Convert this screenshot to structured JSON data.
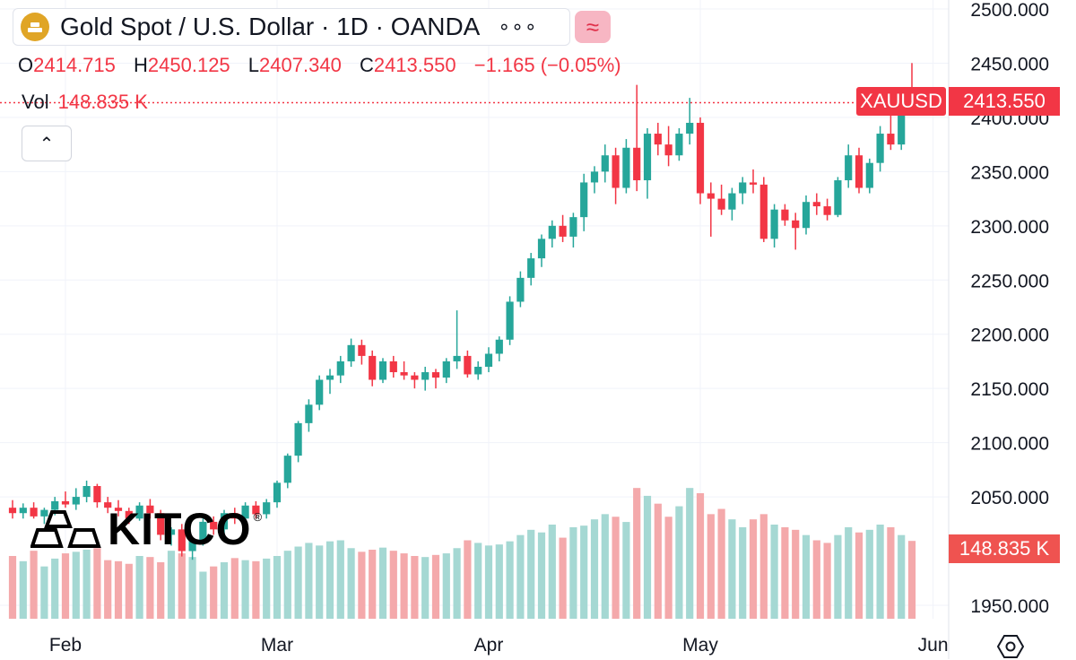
{
  "header": {
    "symbol_title": "Gold Spot / U.S. Dollar · 1D · OANDA",
    "more_label": "∘∘∘",
    "compare_label": "≈",
    "collapse_label": "⌃"
  },
  "ohlc": {
    "open_label": "O",
    "open": "2414.715",
    "high_label": "H",
    "high": "2450.125",
    "low_label": "L",
    "low": "2407.340",
    "close_label": "C",
    "close": "2413.550",
    "change": "−1.165 (−0.05%)"
  },
  "volume": {
    "label": "Vol",
    "value": "148.835 K"
  },
  "tags": {
    "ticker": "XAUUSD",
    "last_price": "2413.550",
    "last_volume": "148.835 K"
  },
  "logo": {
    "text": "KITCO",
    "mark": "®"
  },
  "colors": {
    "up": "#26a69a",
    "down": "#f23645",
    "up_volume": "#a5d8d3",
    "down_volume": "#f4a9ab",
    "grid": "#f0f3fa"
  },
  "icons": {
    "settings": "settings-hexagon-icon",
    "coin": "gold-bars-icon"
  },
  "chart_data": {
    "type": "candlestick",
    "interval": "1D",
    "price_axis_ticks": [
      "1950.000",
      "2050.000",
      "2100.000",
      "2150.000",
      "2200.000",
      "2250.000",
      "2300.000",
      "2350.000",
      "2400.000",
      "2450.000",
      "2500.000"
    ],
    "price_range": [
      1940,
      2505
    ],
    "time_axis_labels": [
      {
        "label": "Feb",
        "index": 5
      },
      {
        "label": "Mar",
        "index": 25
      },
      {
        "label": "Apr",
        "index": 45
      },
      {
        "label": "May",
        "index": 65
      },
      {
        "label": "Jun",
        "index": 87
      }
    ],
    "volume_range": [
      0,
      300
    ],
    "last_price": 2413.55,
    "candles": [
      [
        2040,
        2047,
        2030,
        2035,
        120
      ],
      [
        2035,
        2044,
        2030,
        2040,
        110
      ],
      [
        2040,
        2045,
        2030,
        2032,
        130
      ],
      [
        2032,
        2040,
        2025,
        2038,
        100
      ],
      [
        2038,
        2050,
        2033,
        2046,
        115
      ],
      [
        2046,
        2055,
        2040,
        2043,
        125
      ],
      [
        2043,
        2058,
        2038,
        2050,
        128
      ],
      [
        2050,
        2065,
        2045,
        2060,
        132
      ],
      [
        2060,
        2062,
        2040,
        2045,
        135
      ],
      [
        2045,
        2050,
        2035,
        2040,
        112
      ],
      [
        2040,
        2047,
        2032,
        2037,
        110
      ],
      [
        2037,
        2040,
        2025,
        2030,
        105
      ],
      [
        2030,
        2045,
        2028,
        2042,
        120
      ],
      [
        2042,
        2048,
        2030,
        2035,
        118
      ],
      [
        2035,
        2038,
        2010,
        2015,
        108
      ],
      [
        2015,
        2022,
        2005,
        2020,
        130
      ],
      [
        2020,
        2025,
        1995,
        2000,
        125
      ],
      [
        2000,
        2012,
        1992,
        2010,
        118
      ],
      [
        2010,
        2030,
        2005,
        2027,
        90
      ],
      [
        2027,
        2032,
        2015,
        2020,
        100
      ],
      [
        2020,
        2038,
        2015,
        2035,
        108
      ],
      [
        2035,
        2040,
        2025,
        2030,
        116
      ],
      [
        2030,
        2045,
        2028,
        2042,
        112
      ],
      [
        2042,
        2046,
        2030,
        2034,
        110
      ],
      [
        2034,
        2048,
        2030,
        2045,
        115
      ],
      [
        2045,
        2065,
        2040,
        2063,
        120
      ],
      [
        2063,
        2090,
        2058,
        2088,
        130
      ],
      [
        2088,
        2120,
        2082,
        2118,
        138
      ],
      [
        2118,
        2140,
        2110,
        2135,
        145
      ],
      [
        2135,
        2162,
        2130,
        2158,
        140
      ],
      [
        2158,
        2168,
        2145,
        2162,
        148
      ],
      [
        2162,
        2180,
        2155,
        2175,
        150
      ],
      [
        2175,
        2196,
        2170,
        2190,
        135
      ],
      [
        2190,
        2195,
        2172,
        2180,
        128
      ],
      [
        2180,
        2185,
        2152,
        2158,
        132
      ],
      [
        2158,
        2178,
        2155,
        2175,
        136
      ],
      [
        2175,
        2180,
        2160,
        2165,
        130
      ],
      [
        2165,
        2175,
        2158,
        2162,
        125
      ],
      [
        2162,
        2165,
        2150,
        2158,
        120
      ],
      [
        2158,
        2170,
        2148,
        2165,
        118
      ],
      [
        2165,
        2168,
        2150,
        2160,
        122
      ],
      [
        2160,
        2178,
        2155,
        2175,
        125
      ],
      [
        2175,
        2222,
        2168,
        2180,
        135
      ],
      [
        2180,
        2185,
        2160,
        2163,
        150
      ],
      [
        2163,
        2175,
        2158,
        2170,
        145
      ],
      [
        2170,
        2188,
        2165,
        2182,
        140
      ],
      [
        2182,
        2198,
        2175,
        2195,
        142
      ],
      [
        2195,
        2235,
        2190,
        2230,
        148
      ],
      [
        2230,
        2258,
        2225,
        2252,
        160
      ],
      [
        2252,
        2275,
        2245,
        2270,
        170
      ],
      [
        2270,
        2292,
        2262,
        2288,
        165
      ],
      [
        2288,
        2305,
        2280,
        2300,
        180
      ],
      [
        2300,
        2310,
        2285,
        2290,
        155
      ],
      [
        2290,
        2312,
        2280,
        2308,
        175
      ],
      [
        2308,
        2348,
        2295,
        2340,
        178
      ],
      [
        2340,
        2355,
        2330,
        2350,
        190
      ],
      [
        2350,
        2375,
        2340,
        2365,
        200
      ],
      [
        2365,
        2372,
        2320,
        2335,
        195
      ],
      [
        2335,
        2380,
        2330,
        2372,
        185
      ],
      [
        2372,
        2430,
        2332,
        2342,
        250
      ],
      [
        2342,
        2390,
        2325,
        2385,
        235
      ],
      [
        2385,
        2395,
        2365,
        2375,
        220
      ],
      [
        2375,
        2392,
        2355,
        2365,
        195
      ],
      [
        2365,
        2390,
        2360,
        2385,
        215
      ],
      [
        2385,
        2418,
        2375,
        2395,
        250
      ],
      [
        2395,
        2400,
        2320,
        2330,
        240
      ],
      [
        2330,
        2340,
        2290,
        2325,
        200
      ],
      [
        2325,
        2338,
        2310,
        2315,
        210
      ],
      [
        2315,
        2335,
        2305,
        2330,
        190
      ],
      [
        2330,
        2345,
        2320,
        2340,
        175
      ],
      [
        2340,
        2352,
        2330,
        2338,
        190
      ],
      [
        2338,
        2345,
        2285,
        2288,
        200
      ],
      [
        2288,
        2320,
        2280,
        2315,
        180
      ],
      [
        2315,
        2320,
        2300,
        2305,
        175
      ],
      [
        2305,
        2312,
        2278,
        2298,
        170
      ],
      [
        2298,
        2328,
        2292,
        2322,
        160
      ],
      [
        2322,
        2330,
        2310,
        2318,
        150
      ],
      [
        2318,
        2325,
        2305,
        2310,
        145
      ],
      [
        2310,
        2345,
        2308,
        2342,
        160
      ],
      [
        2342,
        2375,
        2335,
        2365,
        175
      ],
      [
        2365,
        2372,
        2330,
        2335,
        165
      ],
      [
        2335,
        2362,
        2330,
        2358,
        170
      ],
      [
        2358,
        2392,
        2350,
        2385,
        180
      ],
      [
        2385,
        2402,
        2370,
        2375,
        175
      ],
      [
        2375,
        2420,
        2370,
        2412,
        160
      ],
      [
        2414.715,
        2450.125,
        2407.34,
        2413.55,
        148.835
      ]
    ]
  }
}
